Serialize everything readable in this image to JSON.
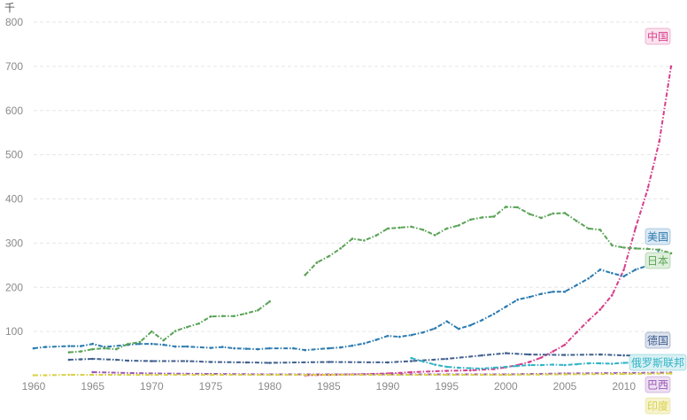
{
  "chart_data": {
    "type": "line",
    "unit_label": "千",
    "ylim": [
      0,
      800
    ],
    "xlim": [
      1960,
      2014
    ],
    "y_ticks": [
      "800",
      "700",
      "600",
      "500",
      "400",
      "300",
      "200",
      "100"
    ],
    "x_ticks": [
      "1960",
      "1965",
      "1970",
      "1975",
      "1980",
      "1985",
      "1990",
      "1995",
      "2000",
      "2005",
      "2010"
    ],
    "grid": true,
    "series": [
      {
        "name": "中国",
        "color": "#d63f8c",
        "label_bg": "#fbe3ee",
        "x": [
          1983,
          1985,
          1987,
          1990,
          1992,
          1995,
          1997,
          1999,
          2000,
          2001,
          2002,
          2003,
          2004,
          2005,
          2006,
          2007,
          2008,
          2009,
          2010,
          2011,
          2012,
          2013,
          2014
        ],
        "y": [
          1,
          2,
          3,
          5,
          8,
          11,
          12,
          15,
          19,
          24,
          31,
          41,
          55,
          70,
          98,
          125,
          150,
          182,
          240,
          335,
          420,
          530,
          700
        ]
      },
      {
        "name": "美国",
        "color": "#2b7bb0",
        "label_bg": "#dce9f4",
        "x": [
          1960,
          1961,
          1963,
          1964,
          1965,
          1966,
          1968,
          1969,
          1970,
          1971,
          1972,
          1973,
          1975,
          1976,
          1977,
          1978,
          1979,
          1980,
          1982,
          1983,
          1985,
          1986,
          1987,
          1988,
          1989,
          1990,
          1991,
          1992,
          1993,
          1994,
          1995,
          1996,
          1997,
          1998,
          1999,
          2000,
          2001,
          2002,
          2003,
          2004,
          2005,
          2006,
          2007,
          2008,
          2009,
          2010,
          2011,
          2012,
          2013
        ],
        "y": [
          62,
          65,
          67,
          67,
          72,
          65,
          70,
          72,
          72,
          70,
          66,
          66,
          63,
          65,
          62,
          61,
          60,
          62,
          62,
          58,
          62,
          64,
          68,
          73,
          81,
          90,
          88,
          92,
          98,
          107,
          123,
          106,
          114,
          126,
          140,
          156,
          172,
          178,
          185,
          190,
          190,
          205,
          220,
          240,
          232,
          225,
          240,
          249,
          285
        ]
      },
      {
        "name": "日本",
        "color": "#5aa356",
        "label_bg": "#deefdb",
        "x": [
          1963,
          1964,
          1965,
          1966,
          1967,
          1968,
          1969,
          1970,
          1971,
          1972,
          1973,
          1974,
          1975,
          1976,
          1977,
          1978,
          1979,
          1980
        ],
        "y": [
          53,
          55,
          60,
          62,
          60,
          72,
          76,
          100,
          80,
          101,
          110,
          118,
          134,
          135,
          135,
          141,
          148,
          168
        ],
        "x2": [
          1983,
          1984,
          1985,
          1986,
          1987,
          1988,
          1989,
          1990,
          1991,
          1992,
          1993,
          1994,
          1995,
          1996,
          1997,
          1998,
          1999,
          2000,
          2001,
          2002,
          2003,
          2004,
          2005,
          2006,
          2007,
          2008,
          2009,
          2010,
          2011,
          2012,
          2013,
          2014
        ],
        "y2": [
          228,
          256,
          270,
          288,
          310,
          306,
          317,
          333,
          335,
          337,
          330,
          318,
          333,
          340,
          353,
          358,
          360,
          382,
          381,
          366,
          357,
          367,
          368,
          350,
          333,
          330,
          295,
          290,
          288,
          287,
          285,
          277
        ]
      },
      {
        "name": "德国",
        "color": "#3f5f8e",
        "label_bg": "#dde3ee",
        "x": [
          1963,
          1964,
          1965,
          1967,
          1968,
          1970,
          1973,
          1975,
          1978,
          1980,
          1985,
          1990,
          1992,
          1995,
          1998,
          2000,
          2002,
          2005,
          2008,
          2010,
          2012,
          2014
        ],
        "y": [
          36,
          37,
          38,
          36,
          34,
          33,
          33,
          31,
          30,
          29,
          31,
          30,
          33,
          38,
          46,
          51,
          48,
          47,
          48,
          46,
          45,
          45
        ]
      },
      {
        "name": "俄罗斯联邦",
        "color": "#32b3c6",
        "label_bg": "#d9f1f4",
        "x": [
          1992,
          1993,
          1994,
          1995,
          1996,
          1997,
          1998,
          1999,
          2000,
          2001,
          2002,
          2003,
          2004,
          2005,
          2006,
          2007,
          2008,
          2009,
          2010,
          2011,
          2012,
          2013,
          2014
        ],
        "y": [
          40,
          32,
          25,
          20,
          18,
          17,
          16,
          18,
          20,
          22,
          24,
          24,
          25,
          24,
          26,
          28,
          28,
          27,
          29,
          30,
          30,
          30,
          30
        ]
      },
      {
        "name": "巴西",
        "color": "#9b59b6",
        "label_bg": "#ece0f2",
        "x": [
          1965,
          1970,
          1975,
          1980,
          1985,
          1990,
          1995,
          2000,
          2005,
          2010,
          2014
        ],
        "y": [
          8,
          5,
          4,
          3,
          3,
          3,
          3,
          3,
          5,
          6,
          7
        ]
      },
      {
        "name": "印度",
        "color": "#d8d14a",
        "label_bg": "#f6f3cf",
        "x": [
          1960,
          1961,
          1963,
          1965,
          1970,
          1975,
          1980,
          1985,
          1990,
          1995,
          2000,
          2005,
          2010,
          2014
        ],
        "y": [
          1,
          1,
          2,
          2,
          2,
          2,
          2,
          2,
          2,
          2,
          2,
          3,
          4,
          5
        ]
      }
    ]
  }
}
